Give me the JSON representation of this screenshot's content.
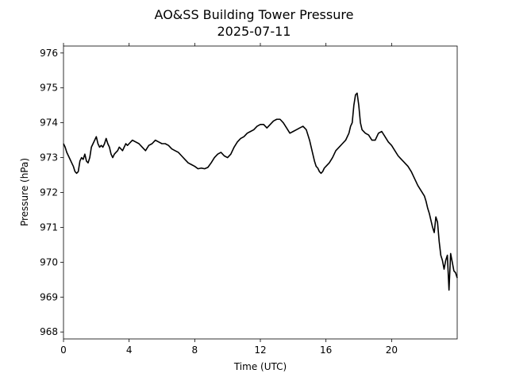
{
  "chart_data": {
    "type": "line",
    "title": "AO&SS Building Tower Pressure",
    "subtitle": "2025-07-11",
    "xlabel": "Time (UTC)",
    "ylabel": "Pressure (hPa)",
    "xlim": [
      0,
      24
    ],
    "ylim": [
      967.8,
      976.2
    ],
    "xticks": [
      0,
      4,
      8,
      12,
      16,
      20
    ],
    "yticks": [
      968,
      969,
      970,
      971,
      972,
      973,
      974,
      975,
      976
    ],
    "grid": false,
    "series": [
      {
        "color": "#000000",
        "x": [
          0,
          0.1,
          0.2,
          0.3,
          0.4,
          0.5,
          0.6,
          0.7,
          0.8,
          0.9,
          1.0,
          1.1,
          1.2,
          1.3,
          1.4,
          1.5,
          1.6,
          1.7,
          1.8,
          1.9,
          2.0,
          2.1,
          2.2,
          2.3,
          2.4,
          2.5,
          2.6,
          2.7,
          2.8,
          2.9,
          3.0,
          3.1,
          3.2,
          3.3,
          3.4,
          3.5,
          3.6,
          3.7,
          3.8,
          3.9,
          4.0,
          4.2,
          4.4,
          4.6,
          4.8,
          5.0,
          5.2,
          5.4,
          5.6,
          5.8,
          6.0,
          6.2,
          6.4,
          6.6,
          6.8,
          7.0,
          7.2,
          7.4,
          7.6,
          7.8,
          8.0,
          8.2,
          8.4,
          8.6,
          8.8,
          9.0,
          9.2,
          9.4,
          9.6,
          9.8,
          10.0,
          10.2,
          10.4,
          10.6,
          10.8,
          11.0,
          11.2,
          11.4,
          11.6,
          11.8,
          12.0,
          12.2,
          12.4,
          12.6,
          12.8,
          13.0,
          13.2,
          13.4,
          13.6,
          13.8,
          14.0,
          14.2,
          14.4,
          14.6,
          14.8,
          15.0,
          15.1,
          15.2,
          15.3,
          15.4,
          15.5,
          15.6,
          15.7,
          15.8,
          15.9,
          16.0,
          16.2,
          16.4,
          16.6,
          16.8,
          17.0,
          17.2,
          17.4,
          17.5,
          17.6,
          17.7,
          17.8,
          17.9,
          18.0,
          18.1,
          18.2,
          18.4,
          18.6,
          18.8,
          19.0,
          19.2,
          19.4,
          19.6,
          19.8,
          20.0,
          20.2,
          20.4,
          20.6,
          20.8,
          21.0,
          21.2,
          21.4,
          21.6,
          21.8,
          22.0,
          22.1,
          22.2,
          22.3,
          22.4,
          22.5,
          22.6,
          22.7,
          22.8,
          22.9,
          23.0,
          23.1,
          23.2,
          23.3,
          23.4,
          23.5,
          23.6,
          23.7,
          23.8,
          23.9,
          24.0
        ],
        "y": [
          973.4,
          973.3,
          973.15,
          973.05,
          972.95,
          972.85,
          972.75,
          972.6,
          972.55,
          972.6,
          972.9,
          973.0,
          972.95,
          973.1,
          972.9,
          972.85,
          973.0,
          973.3,
          973.4,
          973.5,
          973.6,
          973.4,
          973.3,
          973.35,
          973.3,
          973.4,
          973.55,
          973.4,
          973.3,
          973.1,
          973.0,
          973.1,
          973.15,
          973.2,
          973.3,
          973.25,
          973.2,
          973.3,
          973.4,
          973.35,
          973.4,
          973.5,
          973.45,
          973.4,
          973.3,
          973.2,
          973.35,
          973.4,
          973.5,
          973.45,
          973.4,
          973.4,
          973.35,
          973.25,
          973.2,
          973.15,
          973.05,
          972.95,
          972.85,
          972.8,
          972.75,
          972.68,
          972.7,
          972.68,
          972.72,
          972.85,
          973.0,
          973.1,
          973.15,
          973.05,
          973.0,
          973.1,
          973.3,
          973.45,
          973.55,
          973.6,
          973.7,
          973.75,
          973.8,
          973.9,
          973.95,
          973.95,
          973.85,
          973.95,
          974.05,
          974.1,
          974.1,
          974.0,
          973.85,
          973.7,
          973.75,
          973.8,
          973.85,
          973.9,
          973.8,
          973.5,
          973.3,
          973.1,
          972.9,
          972.75,
          972.7,
          972.6,
          972.55,
          972.6,
          972.7,
          972.75,
          972.85,
          973.0,
          973.2,
          973.3,
          973.4,
          973.5,
          973.7,
          973.9,
          974.0,
          974.5,
          974.8,
          974.85,
          974.5,
          974.0,
          973.8,
          973.7,
          973.65,
          973.5,
          973.5,
          973.7,
          973.75,
          973.6,
          973.45,
          973.35,
          973.2,
          973.05,
          972.95,
          972.85,
          972.75,
          972.6,
          972.4,
          972.2,
          972.05,
          971.9,
          971.75,
          971.55,
          971.4,
          971.2,
          971.0,
          970.85,
          971.3,
          971.15,
          970.6,
          970.2,
          970.05,
          969.8,
          970.05,
          970.2,
          969.2,
          970.25,
          970.0,
          969.75,
          969.7,
          969.55
        ]
      }
    ]
  }
}
